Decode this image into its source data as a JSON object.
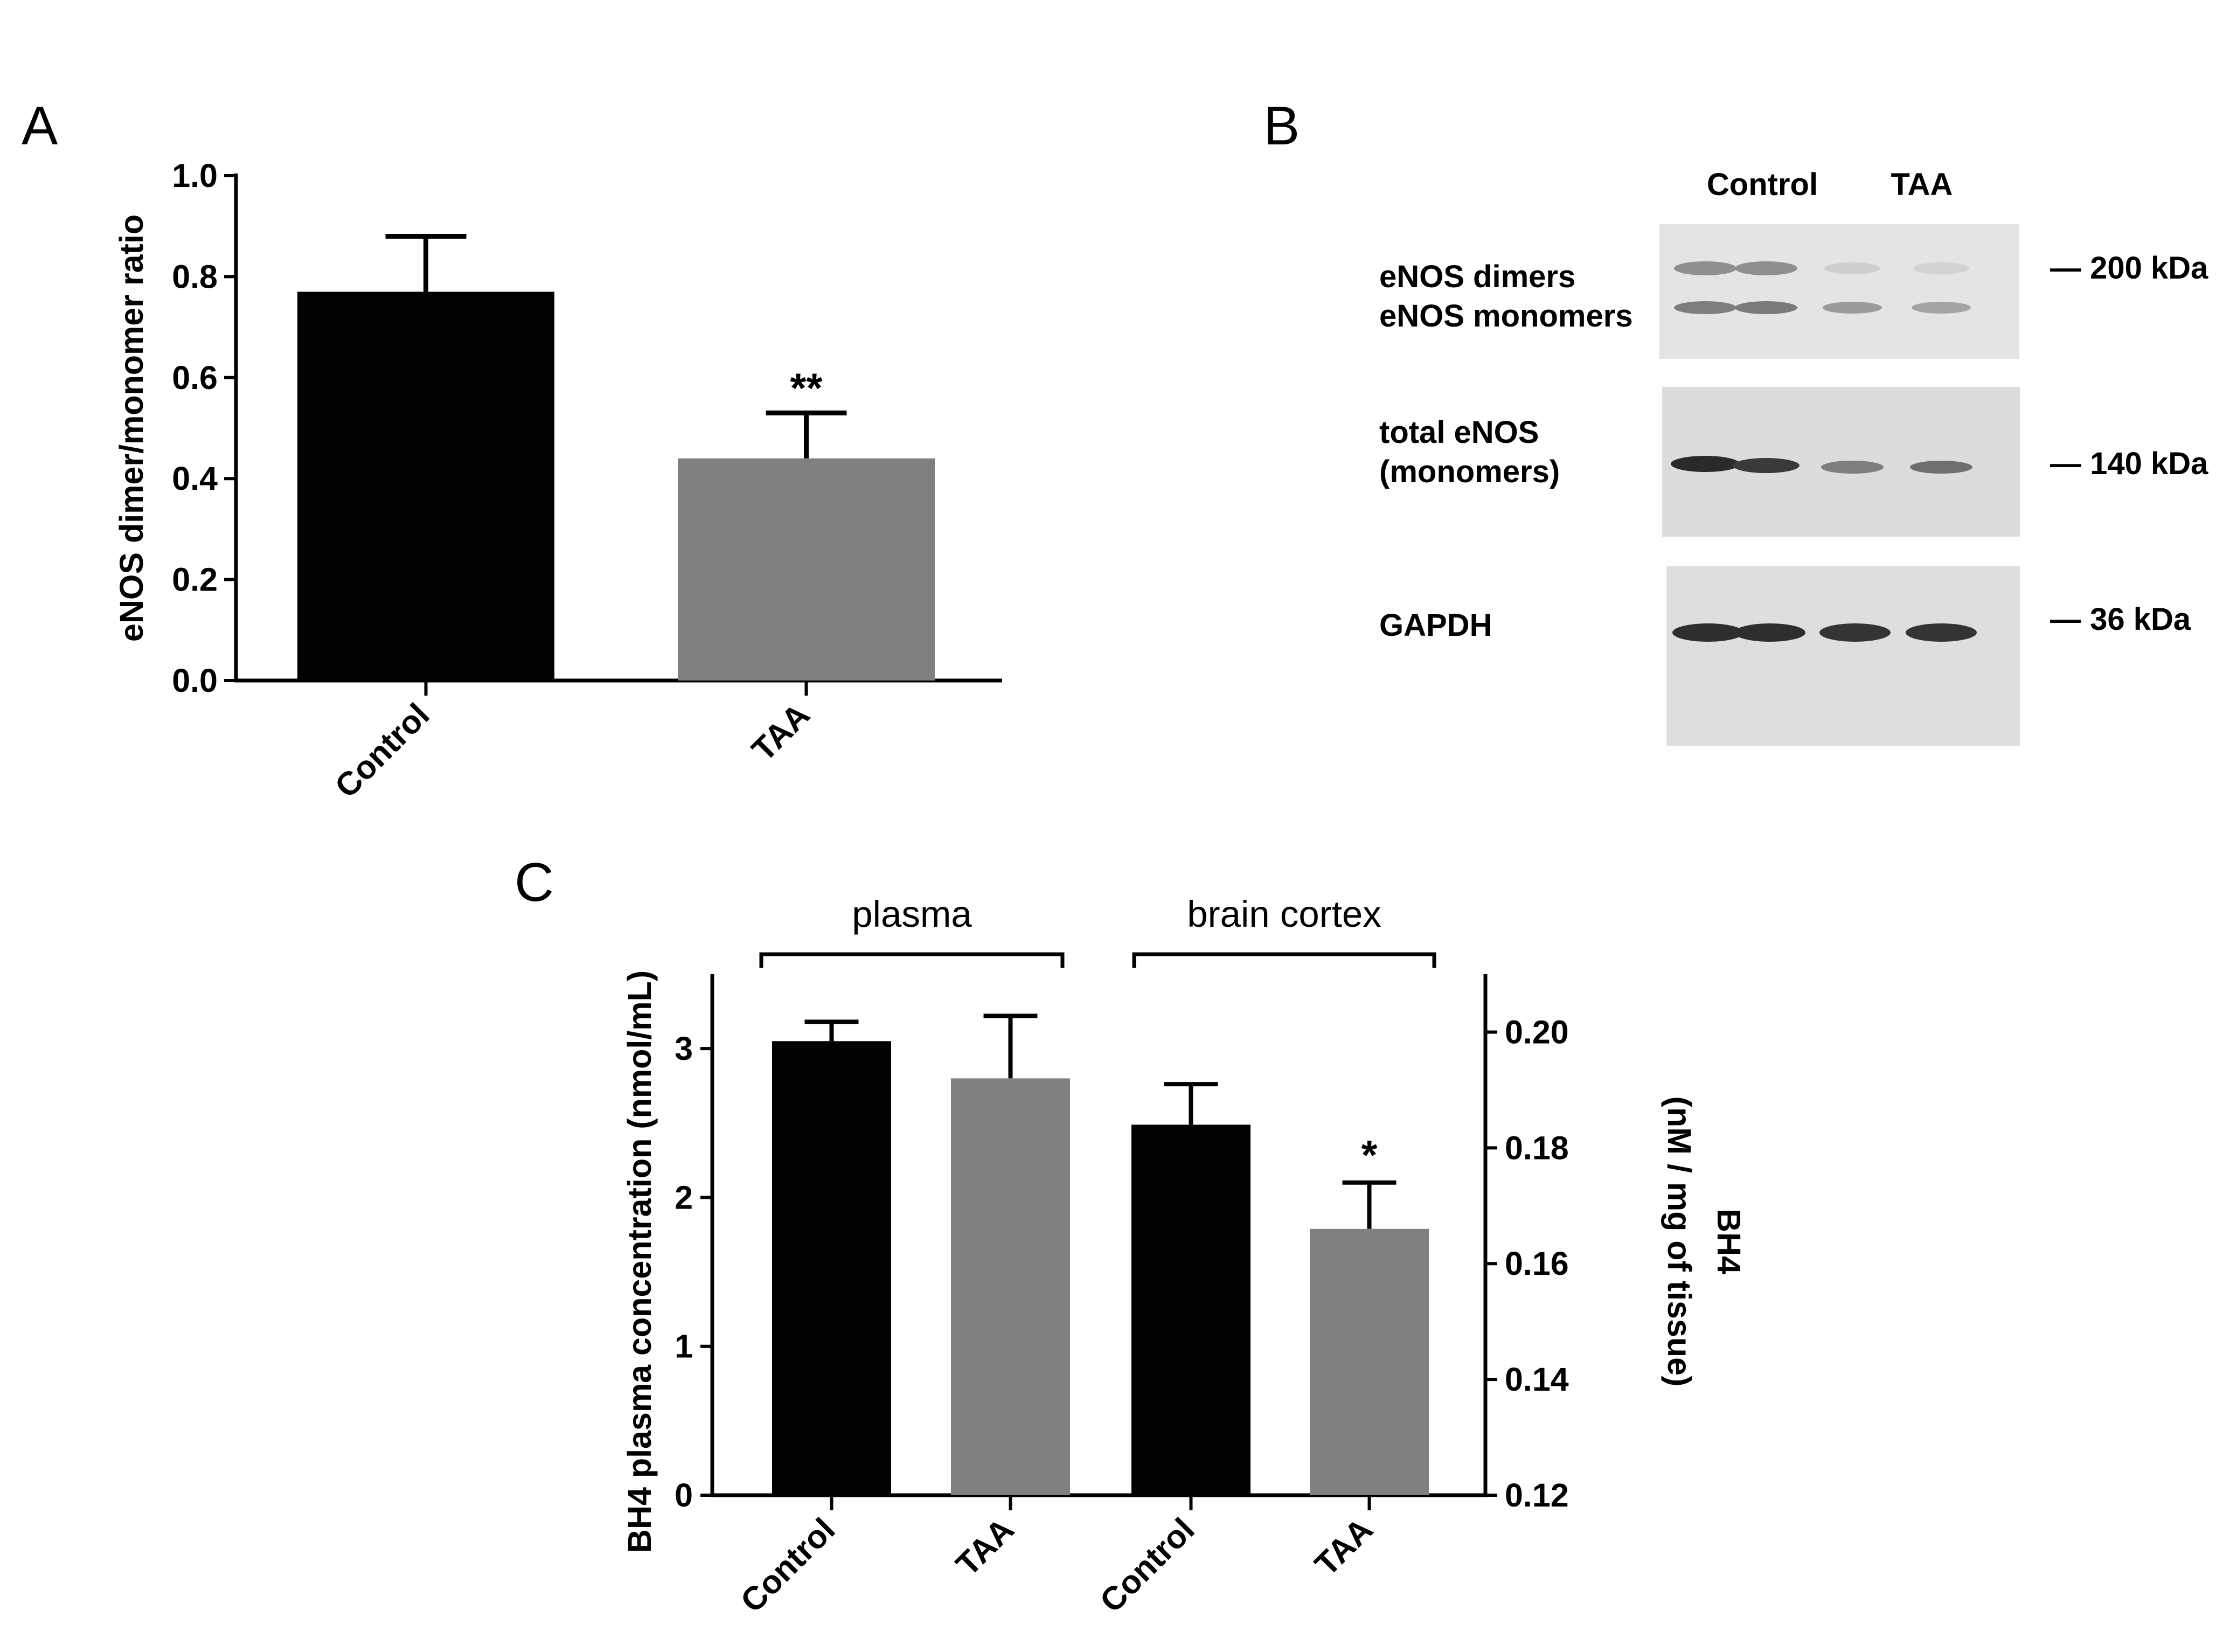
{
  "colors": {
    "control": "#000000",
    "taa": "#808080"
  },
  "panels": {
    "A": {
      "letter": "A"
    },
    "B": {
      "letter": "B",
      "lanes": [
        "Control",
        "TAA"
      ],
      "rows": [
        {
          "labels": [
            "eNOS dimers",
            "eNOS monomers"
          ],
          "markers": [
            "— 200 kDa"
          ]
        },
        {
          "labels": [
            "total eNOS",
            "(monomers)"
          ],
          "markers": [
            "— 140 kDa"
          ]
        },
        {
          "labels": [
            "GAPDH"
          ],
          "markers": [
            "— 36 kDa"
          ]
        }
      ]
    },
    "C": {
      "letter": "C",
      "groups": [
        "plasma",
        "brain cortex"
      ]
    }
  },
  "chart_data": [
    {
      "panel": "A",
      "type": "bar",
      "categories": [
        "Control",
        "TAA"
      ],
      "values": [
        0.77,
        0.44
      ],
      "errors": [
        0.11,
        0.09
      ],
      "colors": [
        "#000000",
        "#808080"
      ],
      "significance": [
        "",
        "**"
      ],
      "ylabel": "eNOS dimer/monomer ratio",
      "ylim": [
        0,
        1.0
      ],
      "yticks": [
        "0.0",
        "0.2",
        "0.4",
        "0.6",
        "0.8",
        "1.0"
      ],
      "grid": false
    },
    {
      "panel": "C",
      "type": "bar",
      "categories": [
        "Control",
        "TAA",
        "Control",
        "TAA"
      ],
      "groups": [
        {
          "name": "plasma",
          "axis": "left",
          "values": [
            3.05,
            2.8
          ],
          "errors": [
            0.13,
            0.42
          ]
        },
        {
          "name": "brain cortex",
          "axis": "right",
          "values": [
            0.184,
            0.166
          ],
          "errors": [
            0.007,
            0.008
          ]
        }
      ],
      "colors": [
        "#000000",
        "#808080",
        "#000000",
        "#808080"
      ],
      "significance": [
        "",
        "",
        "",
        "*"
      ],
      "ylabel": "BH4 plasma concentration (nmol/mL)",
      "ylim": [
        0,
        3.5
      ],
      "yticks": [
        "0",
        "1",
        "2",
        "3"
      ],
      "y2label_lines": [
        "BH4",
        "(nM / mg of tissue)"
      ],
      "y2lim": [
        0.12,
        0.21
      ],
      "y2ticks": [
        "0.12",
        "0.14",
        "0.16",
        "0.18",
        "0.20"
      ],
      "grid": false
    }
  ]
}
